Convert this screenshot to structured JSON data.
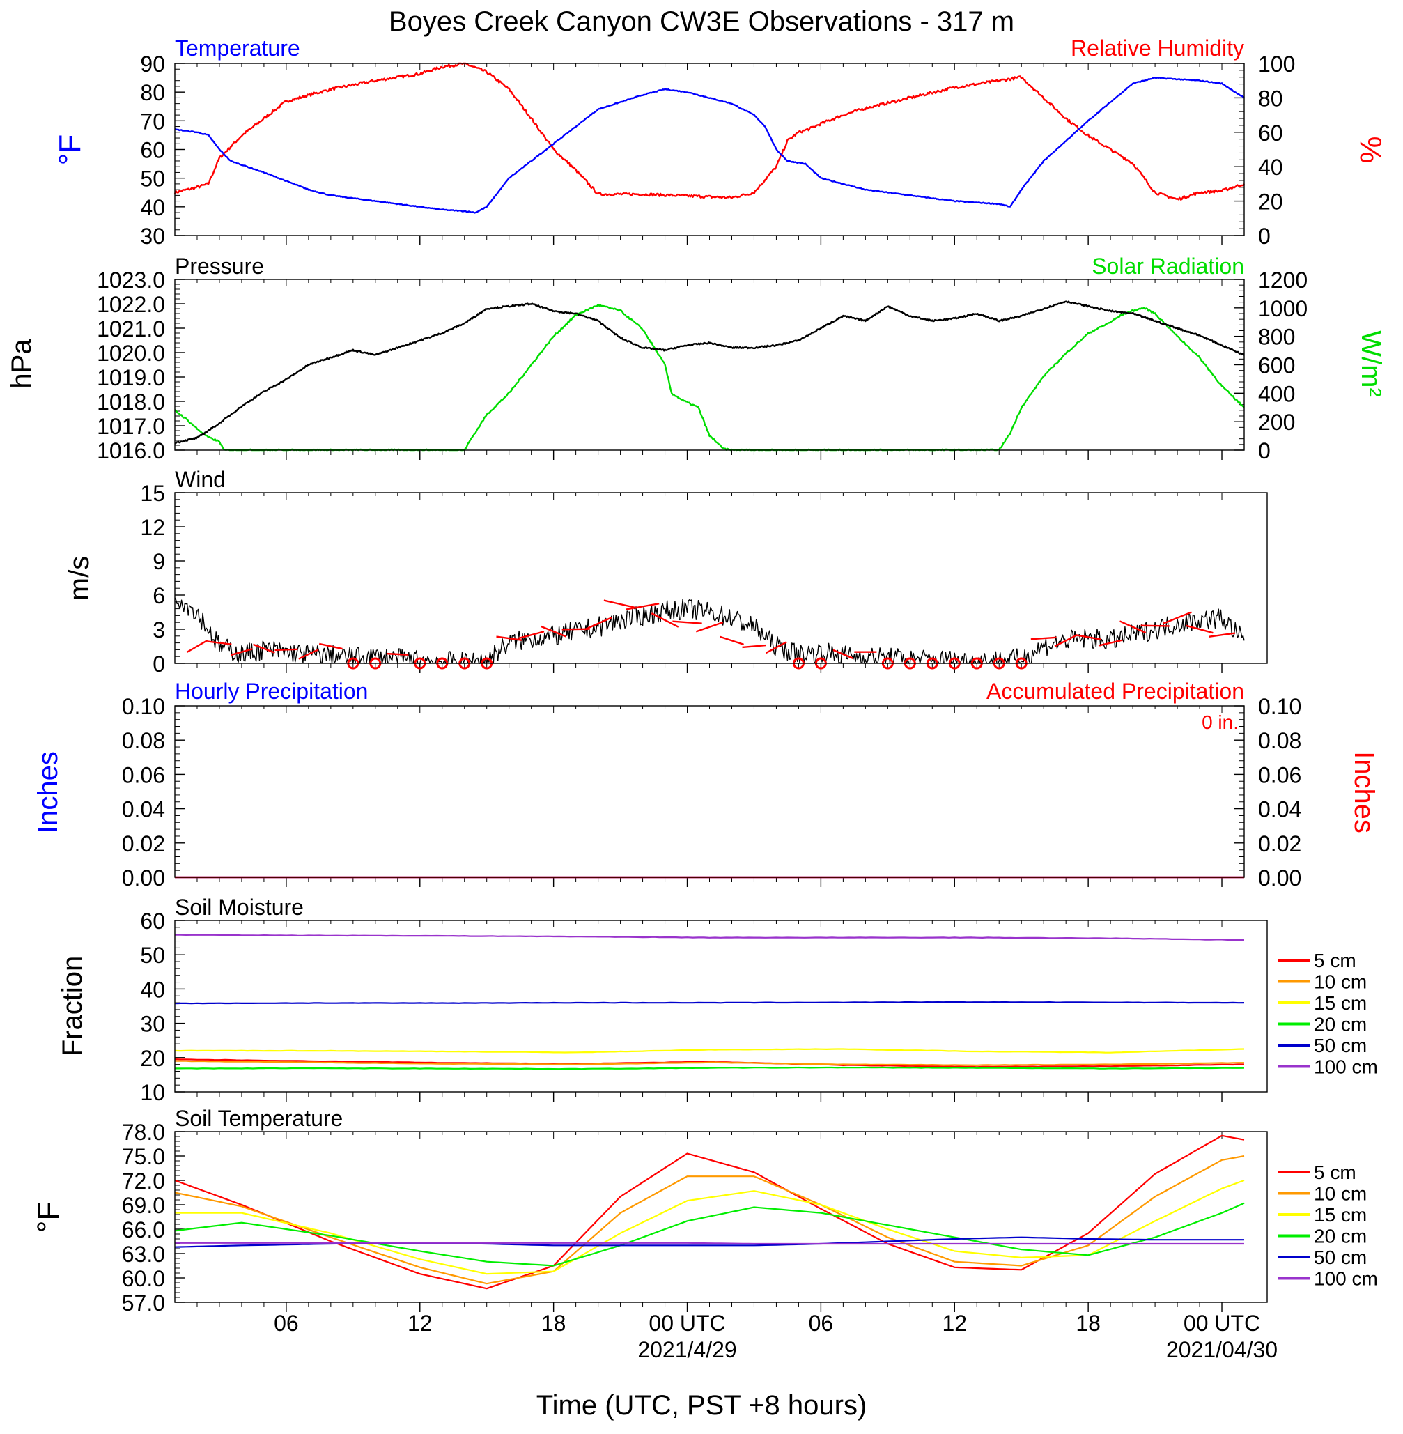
{
  "title": "Boyes Creek Canyon CW3E Observations - 317 m",
  "x_axis": {
    "label": "Time (UTC, PST +8 hours)",
    "ticks": [
      {
        "hour": 6,
        "label": "06"
      },
      {
        "hour": 12,
        "label": "12"
      },
      {
        "hour": 18,
        "label": "18"
      },
      {
        "hour": 24,
        "label": "00 UTC"
      },
      {
        "hour": 30,
        "label": "06"
      },
      {
        "hour": 36,
        "label": "12"
      },
      {
        "hour": 42,
        "label": "18"
      },
      {
        "hour": 48,
        "label": "00 UTC"
      }
    ],
    "date_labels": [
      {
        "hour": 24,
        "label": "2021/4/29"
      },
      {
        "hour": 48,
        "label": "2021/04/30"
      }
    ],
    "range_hours": [
      1,
      49
    ]
  },
  "colors": {
    "temperature": "#0000ff",
    "humidity": "#ff0000",
    "pressure": "#000000",
    "solar": "#00dd00",
    "wind": "#000000",
    "wind_barb": "#ff0000",
    "hourly_precip": "#0000ff",
    "accum_precip": "#ff0000",
    "cm5": "#ff0000",
    "cm10": "#ff9900",
    "cm15": "#ffff00",
    "cm20": "#00ee00",
    "cm50": "#0000cc",
    "cm100": "#9933cc"
  },
  "panels": {
    "temp_rh": {
      "left_title": "Temperature",
      "right_title": "Relative Humidity",
      "left_ylabel": "°F",
      "right_ylabel": "%",
      "left_ylim": [
        30,
        90
      ],
      "right_ylim": [
        0,
        100
      ],
      "left_ticks": [
        "30",
        "40",
        "50",
        "60",
        "70",
        "80",
        "90"
      ],
      "right_ticks": [
        "0",
        "20",
        "40",
        "60",
        "80",
        "100"
      ]
    },
    "pressure_solar": {
      "left_title": "Pressure",
      "right_title": "Solar Radiation",
      "left_ylabel": "hPa",
      "right_ylabel": "W/m²",
      "left_ylim": [
        1016,
        1023
      ],
      "right_ylim": [
        0,
        1200
      ],
      "left_ticks": [
        "1016.0",
        "1017.0",
        "1018.0",
        "1019.0",
        "1020.0",
        "1021.0",
        "1022.0",
        "1023.0"
      ],
      "right_ticks": [
        "0",
        "200",
        "400",
        "600",
        "800",
        "1000",
        "1200"
      ]
    },
    "wind": {
      "left_title": "Wind",
      "left_ylabel": "m/s",
      "left_ylim": [
        0,
        15
      ],
      "left_ticks": [
        "0",
        "3",
        "6",
        "9",
        "12",
        "15"
      ]
    },
    "precip": {
      "left_title": "Hourly Precipitation",
      "right_title": "Accumulated Precipitation",
      "total_label": "0 in.",
      "left_ylabel": "Inches",
      "right_ylabel": "Inches",
      "left_ylim": [
        0,
        0.1
      ],
      "right_ylim": [
        0,
        0.1
      ],
      "left_ticks": [
        "0.00",
        "0.02",
        "0.04",
        "0.06",
        "0.08",
        "0.10"
      ],
      "right_ticks": [
        "0.00",
        "0.02",
        "0.04",
        "0.06",
        "0.08",
        "0.10"
      ]
    },
    "soil_moisture": {
      "left_title": "Soil Moisture",
      "left_ylabel": "Fraction",
      "left_ylim": [
        10,
        60
      ],
      "left_ticks": [
        "10",
        "20",
        "30",
        "40",
        "50",
        "60"
      ]
    },
    "soil_temp": {
      "left_title": "Soil Temperature",
      "left_ylabel": "°F",
      "left_ylim": [
        57,
        78
      ],
      "left_ticks": [
        "57.0",
        "60.0",
        "63.0",
        "66.0",
        "69.0",
        "72.0",
        "75.0",
        "78.0"
      ]
    }
  },
  "legend_depths": [
    "5 cm",
    "10 cm",
    "15 cm",
    "20 cm",
    "50 cm",
    "100 cm"
  ],
  "chart_data": [
    {
      "type": "line",
      "title": "Temperature",
      "x_unit": "hours UTC since 2021/4/28 00",
      "series": [
        {
          "name": "Temperature",
          "axis": "left",
          "x": [
            1,
            2,
            2.5,
            3,
            3.5,
            5,
            6,
            7,
            8,
            10,
            12,
            13,
            14,
            14.5,
            15,
            16,
            18,
            20,
            22,
            23,
            24,
            25,
            26,
            27,
            27.5,
            28,
            28.5,
            29.3,
            30,
            31,
            32,
            34,
            36,
            38,
            38.5,
            39,
            40,
            42,
            44,
            45,
            46,
            47,
            48,
            49
          ],
          "y": [
            67,
            66,
            65,
            60,
            56,
            52,
            49,
            46,
            44,
            42,
            40,
            39,
            38.5,
            38,
            40,
            50,
            62,
            74,
            79,
            81,
            80,
            78,
            76,
            72,
            68,
            60,
            56,
            55,
            50,
            48,
            46,
            44,
            42,
            41,
            40,
            46,
            56,
            70,
            83,
            85,
            84.5,
            84,
            83,
            78
          ]
        },
        {
          "name": "Relative Humidity",
          "axis": "right",
          "x": [
            1,
            2,
            2.5,
            3,
            4,
            5,
            6,
            8,
            10,
            12,
            13,
            14,
            15,
            16,
            17,
            18,
            19,
            20,
            22,
            24,
            26,
            27,
            28,
            28.5,
            29,
            29.5,
            30,
            31,
            32,
            34,
            36,
            38,
            39,
            40,
            41,
            42,
            44,
            45,
            46,
            47,
            48,
            49
          ],
          "y": [
            25,
            28,
            30,
            45,
            58,
            68,
            78,
            85,
            90,
            94,
            98,
            100,
            95,
            85,
            68,
            50,
            38,
            24,
            24,
            23,
            22,
            25,
            40,
            55,
            60,
            62,
            65,
            70,
            74,
            80,
            86,
            90,
            92,
            80,
            68,
            58,
            42,
            25,
            21,
            25,
            26,
            30
          ]
        }
      ]
    },
    {
      "type": "line",
      "title": "Pressure",
      "x_unit": "hours UTC since 2021/4/28 00",
      "series": [
        {
          "name": "Pressure",
          "axis": "left",
          "x": [
            1,
            2,
            3,
            4,
            5,
            6,
            7,
            8,
            9,
            10,
            11,
            12,
            13,
            14,
            15,
            16,
            17,
            18,
            19,
            20,
            21,
            22,
            23,
            24,
            25,
            26,
            27,
            28,
            29,
            30,
            31,
            32,
            33,
            34,
            35,
            36,
            37,
            38,
            39,
            40,
            41,
            42,
            43,
            44,
            45,
            46,
            47,
            48,
            49
          ],
          "y": [
            1016.3,
            1016.5,
            1017.1,
            1017.8,
            1018.4,
            1018.9,
            1019.5,
            1019.8,
            1020.1,
            1019.9,
            1020.2,
            1020.5,
            1020.8,
            1021.2,
            1021.8,
            1021.9,
            1022.0,
            1021.7,
            1021.6,
            1021.3,
            1020.6,
            1020.2,
            1020.1,
            1020.3,
            1020.4,
            1020.2,
            1020.2,
            1020.3,
            1020.5,
            1021.0,
            1021.5,
            1021.3,
            1021.9,
            1021.5,
            1021.3,
            1021.4,
            1021.6,
            1021.3,
            1021.5,
            1021.8,
            1022.1,
            1021.9,
            1021.7,
            1021.6,
            1021.3,
            1021.0,
            1020.7,
            1020.3,
            1019.9
          ]
        },
        {
          "name": "Solar Radiation",
          "axis": "right",
          "x": [
            1,
            1.5,
            2,
            2.5,
            3,
            3.2,
            4,
            10,
            14,
            14.3,
            14.6,
            15,
            16,
            17,
            18,
            19,
            20,
            21,
            22,
            23,
            23.3,
            23.8,
            24.5,
            25,
            25.3,
            25.6,
            26,
            26.2,
            30,
            38,
            38.5,
            39,
            40,
            41,
            42,
            43,
            43.5,
            44,
            44.5,
            45,
            46,
            47,
            48,
            49
          ],
          "y": [
            280,
            220,
            150,
            90,
            60,
            0,
            0,
            0,
            0,
            80,
            150,
            250,
            400,
            600,
            800,
            950,
            1020,
            980,
            850,
            600,
            400,
            350,
            300,
            100,
            60,
            10,
            0,
            0,
            0,
            0,
            120,
            300,
            520,
            680,
            820,
            900,
            950,
            980,
            1000,
            960,
            800,
            650,
            450,
            300
          ]
        }
      ]
    },
    {
      "type": "line",
      "title": "Wind",
      "x_unit": "hours UTC since 2021/4/28 00",
      "series": [
        {
          "name": "Wind speed",
          "x": [
            1,
            2,
            3,
            4,
            5,
            6,
            7,
            8,
            9,
            10,
            11,
            12,
            13,
            14,
            15,
            16,
            17,
            18,
            19,
            20,
            21,
            22,
            23,
            24,
            25,
            26,
            27,
            28,
            29,
            30,
            31,
            32,
            33,
            34,
            35,
            36,
            37,
            38,
            39,
            40,
            41,
            42,
            43,
            44,
            45,
            46,
            47,
            48,
            49
          ],
          "y": [
            6,
            4.5,
            1.5,
            0.8,
            1.2,
            1.0,
            0.8,
            0.7,
            0.5,
            0.6,
            0.4,
            0.3,
            0.2,
            0.1,
            0.3,
            1.8,
            2.2,
            2.4,
            2.8,
            3.2,
            3.8,
            4.2,
            4.6,
            4.8,
            4.5,
            4.0,
            3.2,
            1.5,
            0.8,
            1.0,
            0.7,
            0.6,
            0.5,
            0.4,
            0.3,
            0.3,
            0.2,
            0.3,
            0.4,
            1.5,
            2.0,
            2.2,
            2.0,
            2.5,
            3.0,
            3.5,
            3.8,
            4.0,
            2.0
          ]
        },
        {
          "name": "Wind barbs",
          "x": [
            2,
            3,
            4,
            5,
            6,
            7,
            8,
            9,
            10,
            11,
            12,
            13,
            14,
            15,
            16,
            17,
            18,
            19,
            20,
            21,
            22,
            23,
            24,
            25,
            26,
            27,
            28,
            29,
            30,
            31,
            32,
            33,
            34,
            35,
            36,
            37,
            38,
            39,
            40,
            41,
            42,
            43,
            44,
            45,
            46,
            47,
            48
          ],
          "y": [
            1.5,
            1.8,
            1.0,
            1.3,
            1.2,
            0.8,
            1.5,
            0,
            0,
            0.8,
            0,
            0,
            0,
            0,
            2.2,
            2.5,
            2.8,
            3.0,
            3.5,
            5.2,
            5.0,
            3.8,
            3.6,
            3.2,
            2.0,
            1.5,
            1.4,
            0,
            0,
            0.8,
            1.0,
            0,
            0,
            0,
            0,
            0,
            0,
            0,
            2.2,
            2.0,
            2.3,
            1.8,
            3.2,
            3.3,
            4.0,
            3.0,
            2.5
          ]
        }
      ]
    },
    {
      "type": "line",
      "title": "Hourly Precipitation",
      "x_unit": "hours UTC since 2021/4/28 00",
      "series": [
        {
          "name": "Hourly Precipitation",
          "axis": "left",
          "x": [
            1,
            49
          ],
          "y": [
            0,
            0
          ]
        },
        {
          "name": "Accumulated Precipitation",
          "axis": "right",
          "x": [
            1,
            49
          ],
          "y": [
            0,
            0
          ]
        }
      ]
    },
    {
      "type": "line",
      "title": "Soil Moisture",
      "x_unit": "hours UTC since 2021/4/28 00",
      "x": [
        1,
        7,
        13,
        19,
        25,
        31,
        37,
        43,
        49
      ],
      "series": [
        {
          "name": "5 cm",
          "y": [
            19.5,
            19.0,
            18.5,
            18.2,
            18.8,
            17.8,
            17.3,
            17.5,
            18.0
          ]
        },
        {
          "name": "10 cm",
          "y": [
            19.0,
            18.6,
            18.2,
            18.0,
            18.6,
            18.0,
            17.8,
            18.0,
            18.5
          ]
        },
        {
          "name": "15 cm",
          "y": [
            22.0,
            22.0,
            21.8,
            21.5,
            22.3,
            22.5,
            21.8,
            21.5,
            22.5
          ]
        },
        {
          "name": "20 cm",
          "y": [
            16.8,
            16.9,
            16.8,
            16.7,
            17.0,
            17.1,
            17.0,
            16.8,
            17.0
          ]
        },
        {
          "name": "50 cm",
          "y": [
            35.8,
            35.9,
            35.9,
            36.0,
            36.0,
            36.1,
            36.2,
            36.1,
            36.0
          ]
        },
        {
          "name": "100 cm",
          "y": [
            55.8,
            55.6,
            55.5,
            55.3,
            55.0,
            55.0,
            55.0,
            54.8,
            54.3
          ]
        }
      ]
    },
    {
      "type": "line",
      "title": "Soil Temperature",
      "x_unit": "hours UTC since 2021/4/28 00",
      "x": [
        1,
        4,
        8,
        12,
        15,
        18,
        21,
        24,
        27,
        30,
        33,
        36,
        39,
        42,
        45,
        48,
        49
      ],
      "series": [
        {
          "name": "5 cm",
          "y": [
            72.0,
            69.0,
            64.5,
            60.5,
            58.7,
            61.5,
            70.0,
            75.3,
            73.0,
            68.5,
            64.2,
            61.3,
            61.0,
            65.5,
            72.8,
            77.5,
            77.0
          ]
        },
        {
          "name": "10 cm",
          "y": [
            70.5,
            68.8,
            65.0,
            61.3,
            59.3,
            60.8,
            68.0,
            72.5,
            72.5,
            69.0,
            65.0,
            62.0,
            61.5,
            64.0,
            70.0,
            74.5,
            75.0
          ]
        },
        {
          "name": "15 cm",
          "y": [
            68.0,
            68.0,
            65.5,
            62.3,
            60.5,
            60.8,
            65.5,
            69.5,
            70.7,
            69.0,
            66.0,
            63.3,
            62.5,
            62.8,
            67.0,
            71.0,
            72.0
          ]
        },
        {
          "name": "20 cm",
          "y": [
            65.8,
            66.8,
            65.2,
            63.3,
            62.0,
            61.5,
            64.0,
            67.0,
            68.7,
            68.0,
            66.5,
            65.0,
            63.5,
            62.8,
            65.0,
            68.0,
            69.2
          ]
        },
        {
          "name": "50 cm",
          "y": [
            63.8,
            64.0,
            64.2,
            64.3,
            64.2,
            64.0,
            64.0,
            64.0,
            64.0,
            64.2,
            64.5,
            64.8,
            65.0,
            64.8,
            64.7,
            64.7,
            64.7
          ]
        },
        {
          "name": "100 cm",
          "y": [
            64.3,
            64.3,
            64.3,
            64.3,
            64.3,
            64.3,
            64.3,
            64.3,
            64.2,
            64.2,
            64.2,
            64.2,
            64.2,
            64.2,
            64.2,
            64.2,
            64.2
          ]
        }
      ]
    }
  ]
}
